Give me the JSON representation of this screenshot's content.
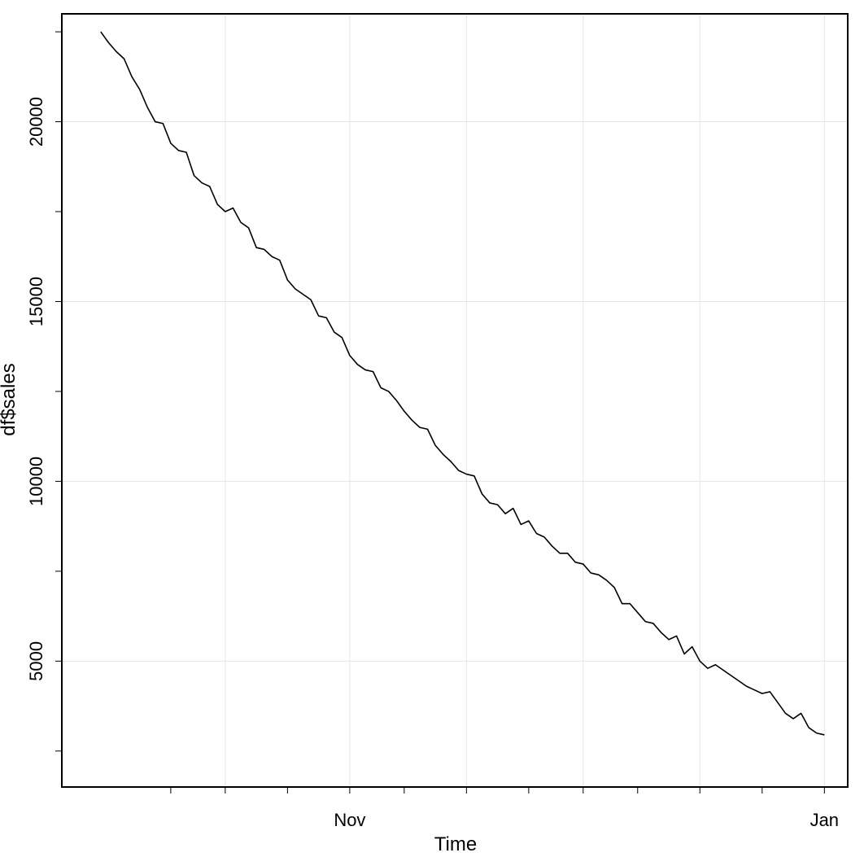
{
  "chart_data": {
    "type": "line",
    "title": "",
    "xlabel": "Time",
    "ylabel": "df$sales",
    "grid": true,
    "x_tick_labels": [
      {
        "date": "2020-11-01",
        "label": "Nov"
      },
      {
        "date": "2021-01-01",
        "label": "Jan"
      }
    ],
    "y_ticks": [
      5000,
      10000,
      15000,
      20000
    ],
    "xlim": [
      "2020-09-25",
      "2021-01-04"
    ],
    "ylim": [
      1500,
      23000
    ],
    "series": [
      {
        "color": "#000000",
        "x": [
          "2020-09-30",
          "2020-10-01",
          "2020-10-02",
          "2020-10-03",
          "2020-10-04",
          "2020-10-05",
          "2020-10-06",
          "2020-10-07",
          "2020-10-08",
          "2020-10-09",
          "2020-10-10",
          "2020-10-11",
          "2020-10-12",
          "2020-10-13",
          "2020-10-14",
          "2020-10-15",
          "2020-10-16",
          "2020-10-17",
          "2020-10-18",
          "2020-10-19",
          "2020-10-20",
          "2020-10-21",
          "2020-10-22",
          "2020-10-23",
          "2020-10-24",
          "2020-10-25",
          "2020-10-26",
          "2020-10-27",
          "2020-10-28",
          "2020-10-29",
          "2020-10-30",
          "2020-10-31",
          "2020-11-01",
          "2020-11-02",
          "2020-11-03",
          "2020-11-04",
          "2020-11-05",
          "2020-11-06",
          "2020-11-07",
          "2020-11-08",
          "2020-11-09",
          "2020-11-10",
          "2020-11-11",
          "2020-11-12",
          "2020-11-13",
          "2020-11-14",
          "2020-11-15",
          "2020-11-16",
          "2020-11-17",
          "2020-11-18",
          "2020-11-19",
          "2020-11-20",
          "2020-11-21",
          "2020-11-22",
          "2020-11-23",
          "2020-11-24",
          "2020-11-25",
          "2020-11-26",
          "2020-11-27",
          "2020-11-28",
          "2020-11-29",
          "2020-11-30",
          "2020-12-01",
          "2020-12-02",
          "2020-12-03",
          "2020-12-04",
          "2020-12-05",
          "2020-12-06",
          "2020-12-07",
          "2020-12-08",
          "2020-12-09",
          "2020-12-10",
          "2020-12-11",
          "2020-12-12",
          "2020-12-13",
          "2020-12-14",
          "2020-12-15",
          "2020-12-16",
          "2020-12-17",
          "2020-12-18",
          "2020-12-19",
          "2020-12-20",
          "2020-12-21",
          "2020-12-22",
          "2020-12-23",
          "2020-12-24",
          "2020-12-25",
          "2020-12-26",
          "2020-12-27",
          "2020-12-28",
          "2020-12-29",
          "2020-12-30",
          "2020-12-31",
          "2021-01-01"
        ],
        "values": [
          22500,
          22200,
          21950,
          21750,
          21250,
          20900,
          20400,
          20000,
          19950,
          19400,
          19200,
          19150,
          18500,
          18300,
          18200,
          17700,
          17500,
          17600,
          17200,
          17050,
          16500,
          16450,
          16250,
          16150,
          15600,
          15350,
          15200,
          15050,
          14600,
          14550,
          14150,
          14000,
          13500,
          13250,
          13100,
          13050,
          12600,
          12500,
          12250,
          11950,
          11700,
          11500,
          11450,
          11000,
          10750,
          10550,
          10300,
          10200,
          10150,
          9650,
          9400,
          9350,
          9100,
          9250,
          8800,
          8900,
          8550,
          8450,
          8200,
          8000,
          8000,
          7750,
          7700,
          7450,
          7400,
          7250,
          7050,
          6600,
          6600,
          6350,
          6100,
          6050,
          5800,
          5600,
          5700,
          5200,
          5400,
          5000,
          4800,
          4900,
          4750,
          4600,
          4450,
          4300,
          4200,
          4100,
          4150,
          3850,
          3550,
          3400,
          3550,
          3150,
          3000,
          2950
        ]
      }
    ]
  }
}
